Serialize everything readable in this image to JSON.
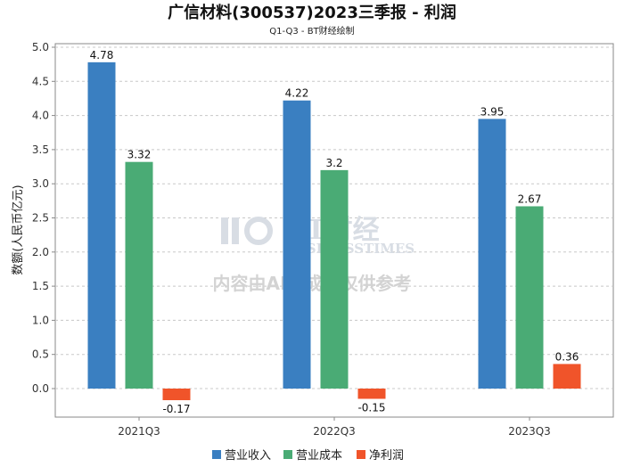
{
  "chart_data": {
    "type": "bar",
    "title": "广信材料(300537)2023三季报 - 利润",
    "subtitle": "Q1-Q3 - BT财经绘制",
    "ylabel": "数额(人民币亿元)",
    "xlabel": "",
    "ylim": [
      -0.4,
      5.0
    ],
    "yticks": [
      0.0,
      0.5,
      1.0,
      1.5,
      2.0,
      2.5,
      3.0,
      3.5,
      4.0,
      4.5,
      5.0
    ],
    "ytick_labels": [
      "0.0",
      "0.5",
      "1.0",
      "1.5",
      "2.0",
      "2.5",
      "3.0",
      "3.5",
      "4.0",
      "4.5",
      "5.0"
    ],
    "categories": [
      "2021Q3",
      "2022Q3",
      "2023Q3"
    ],
    "series": [
      {
        "name": "营业收入",
        "color": "#3a7fc1",
        "values": [
          4.78,
          4.22,
          3.95
        ],
        "labels": [
          "4.78",
          "4.22",
          "3.95"
        ]
      },
      {
        "name": "营业成本",
        "color": "#4aab75",
        "values": [
          3.32,
          3.2,
          2.67
        ],
        "labels": [
          "3.32",
          "3.2",
          "2.67"
        ]
      },
      {
        "name": "净利润",
        "color": "#f0542a",
        "values": [
          -0.17,
          -0.15,
          0.36
        ],
        "labels": [
          "-0.17",
          "-0.15",
          "0.36"
        ]
      }
    ],
    "grid": true,
    "legend": "bottom-center"
  },
  "watermark": {
    "logo_text": "BT财经",
    "logo_sub": "BUSINESSTIMES",
    "notice": "内容由AI生成，仅供参考"
  }
}
